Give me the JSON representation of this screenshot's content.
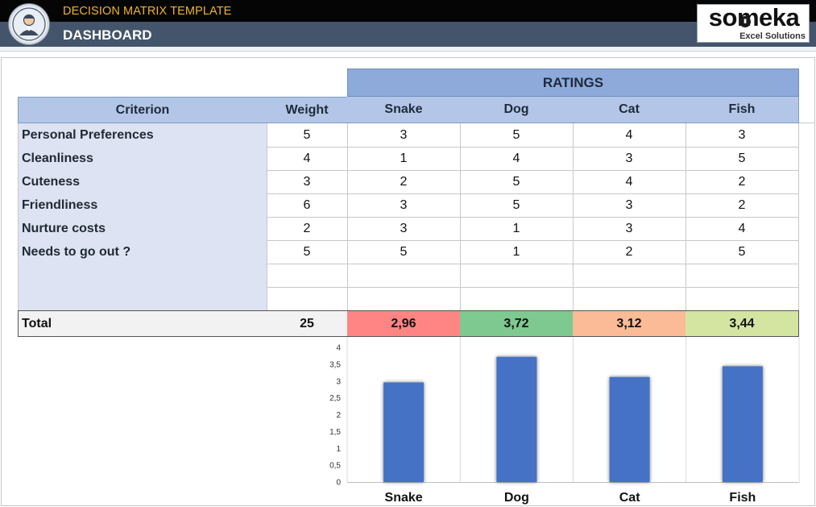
{
  "header": {
    "app_name": "DECISION MATRIX TEMPLATE",
    "page_name": "DASHBOARD",
    "brand_name": "someka",
    "brand_tagline": "Excel Solutions",
    "logo_icon": "user-avatar-icon",
    "accent_color": "#f0b429",
    "header_bg": "#44546a"
  },
  "matrix": {
    "ratings_label": "RATINGS",
    "criterion_header": "Criterion",
    "weight_header": "Weight",
    "options": [
      "Snake",
      "Dog",
      "Cat",
      "Fish"
    ],
    "rows": [
      {
        "criterion": "Personal Preferences",
        "weight": "5",
        "scores": [
          "3",
          "5",
          "4",
          "3"
        ]
      },
      {
        "criterion": "Cleanliness",
        "weight": "4",
        "scores": [
          "1",
          "4",
          "3",
          "5"
        ]
      },
      {
        "criterion": "Cuteness",
        "weight": "3",
        "scores": [
          "2",
          "5",
          "4",
          "2"
        ]
      },
      {
        "criterion": "Friendliness",
        "weight": "6",
        "scores": [
          "3",
          "5",
          "3",
          "2"
        ]
      },
      {
        "criterion": "Nurture costs",
        "weight": "2",
        "scores": [
          "3",
          "1",
          "3",
          "4"
        ]
      },
      {
        "criterion": "Needs to go out ?",
        "weight": "5",
        "scores": [
          "5",
          "1",
          "2",
          "5"
        ]
      },
      {
        "criterion": "",
        "weight": "",
        "scores": [
          "",
          "",
          "",
          ""
        ]
      },
      {
        "criterion": "",
        "weight": "",
        "scores": [
          "",
          "",
          "",
          ""
        ]
      }
    ],
    "total_label": "Total",
    "total_weight": "25",
    "totals": [
      "2,96",
      "3,72",
      "3,12",
      "3,44"
    ],
    "total_colors": [
      "#ff8585",
      "#7ec98f",
      "#fbbb96",
      "#d4e5a1"
    ]
  },
  "chart_data": {
    "type": "bar",
    "categories": [
      "Snake",
      "Dog",
      "Cat",
      "Fish"
    ],
    "values": [
      2.96,
      3.72,
      3.12,
      3.44
    ],
    "ylim": [
      0,
      4
    ],
    "yticks": [
      "0",
      "0,5",
      "1",
      "1,5",
      "2",
      "2,5",
      "3",
      "3,5",
      "4"
    ],
    "bar_color": "#4472c4",
    "title": "",
    "xlabel": "",
    "ylabel": ""
  }
}
